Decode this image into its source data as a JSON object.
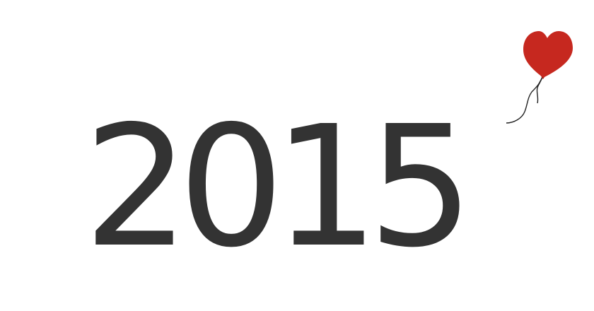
{
  "year": {
    "digits": [
      "2",
      "0",
      "1",
      "5"
    ]
  },
  "balloon": {
    "icon": "heart-balloon-icon",
    "heart_color": "#c6281f",
    "string_color": "#222222"
  },
  "colors": {
    "text": "#333333",
    "background": "#ffffff"
  }
}
